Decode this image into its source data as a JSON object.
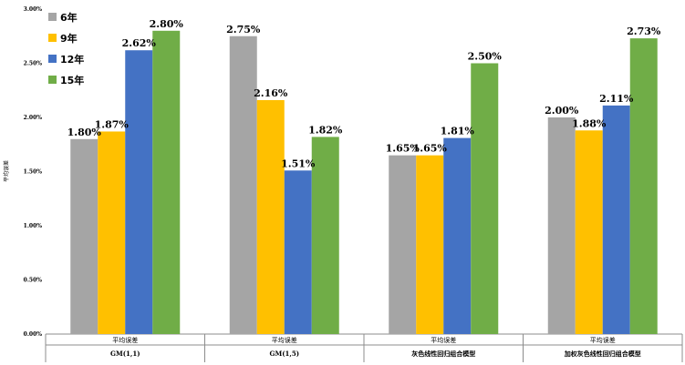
{
  "chart_data": {
    "type": "bar",
    "ylabel": "平均误差",
    "ylim": [
      0,
      3.0
    ],
    "yticks": [
      "0.00%",
      "0.50%",
      "1.00%",
      "1.50%",
      "2.00%",
      "2.50%",
      "3.00%"
    ],
    "ytick_values": [
      0,
      0.5,
      1.0,
      1.5,
      2.0,
      2.5,
      3.0
    ],
    "grid": false,
    "legend_position": "top-left",
    "categories": [
      "GM(1,1)",
      "GM(1,5)",
      "灰色线性回归组合模型",
      "加权灰色线性回归组合模型"
    ],
    "sub_label": "平均误差",
    "series": [
      {
        "name": "6年",
        "color": "#A5A5A5",
        "values": [
          1.8,
          2.75,
          1.65,
          2.0
        ],
        "labels": [
          "1.80%",
          "2.75%",
          "1.65%",
          "2.00%"
        ]
      },
      {
        "name": "9年",
        "color": "#FFC000",
        "values": [
          1.87,
          2.16,
          1.65,
          1.88
        ],
        "labels": [
          "1.87%",
          "2.16%",
          "1.65%",
          "1.88%"
        ]
      },
      {
        "name": "12年",
        "color": "#4472C4",
        "values": [
          2.62,
          1.51,
          1.81,
          2.11
        ],
        "labels": [
          "2.62%",
          "1.51%",
          "1.81%",
          "2.11%"
        ]
      },
      {
        "name": "15年",
        "color": "#70AD47",
        "values": [
          2.8,
          1.82,
          2.5,
          2.73
        ],
        "labels": [
          "2.80%",
          "1.82%",
          "2.50%",
          "2.73%"
        ]
      }
    ]
  }
}
